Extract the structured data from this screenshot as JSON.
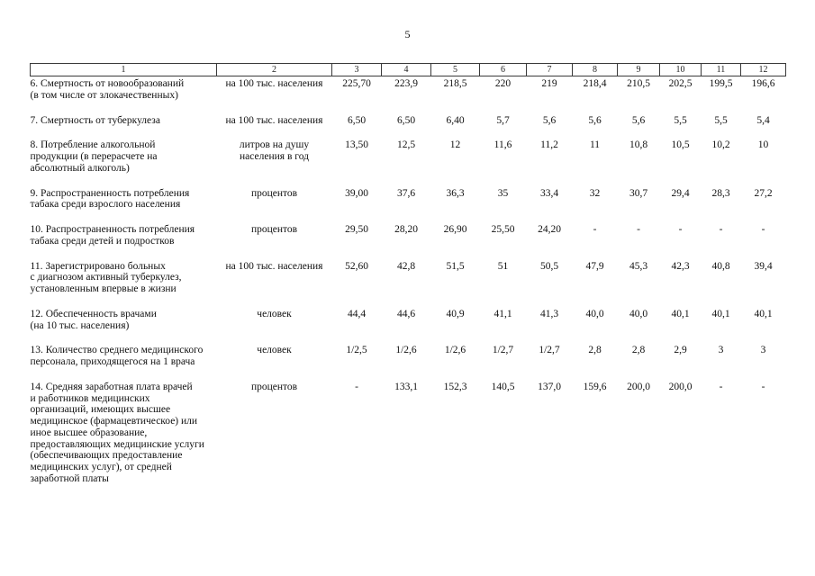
{
  "page": {
    "number": "5"
  },
  "table": {
    "header": [
      "1",
      "2",
      "3",
      "4",
      "5",
      "6",
      "7",
      "8",
      "9",
      "10",
      "11",
      "12"
    ],
    "rows": [
      {
        "label": "6. Смертность от новообразований\n(в том числе от злокачественных)",
        "unit": "на 100 тыс. населения",
        "values": [
          "225,70",
          "223,9",
          "218,5",
          "220",
          "219",
          "218,4",
          "210,5",
          "202,5",
          "199,5",
          "196,6"
        ]
      },
      {
        "label": "7. Смертность от туберкулеза",
        "unit": "на 100 тыс. населения",
        "values": [
          "6,50",
          "6,50",
          "6,40",
          "5,7",
          "5,6",
          "5,6",
          "5,6",
          "5,5",
          "5,5",
          "5,4"
        ]
      },
      {
        "label": "8. Потребление алкогольной\nпродукции (в перерасчете на\nабсолютный алкоголь)",
        "unit": "литров на душу\nнаселения в год",
        "values": [
          "13,50",
          "12,5",
          "12",
          "11,6",
          "11,2",
          "11",
          "10,8",
          "10,5",
          "10,2",
          "10"
        ]
      },
      {
        "label": "9. Распространенность потребления\nтабака среди взрослого населения",
        "unit": "процентов",
        "values": [
          "39,00",
          "37,6",
          "36,3",
          "35",
          "33,4",
          "32",
          "30,7",
          "29,4",
          "28,3",
          "27,2"
        ]
      },
      {
        "label": "10. Распространенность потребления\nтабака среди детей и подростков",
        "unit": "процентов",
        "values": [
          "29,50",
          "28,20",
          "26,90",
          "25,50",
          "24,20",
          "-",
          "-",
          "-",
          "-",
          "-"
        ]
      },
      {
        "label": "11. Зарегистрировано больных\nс диагнозом активный туберкулез,\nустановленным впервые в жизни",
        "unit": "на 100 тыс. населения",
        "values": [
          "52,60",
          "42,8",
          "51,5",
          "51",
          "50,5",
          "47,9",
          "45,3",
          "42,3",
          "40,8",
          "39,4"
        ]
      },
      {
        "label": "12. Обеспеченность врачами\n(на 10 тыс. населения)",
        "unit": "человек",
        "values": [
          "44,4",
          "44,6",
          "40,9",
          "41,1",
          "41,3",
          "40,0",
          "40,0",
          "40,1",
          "40,1",
          "40,1"
        ]
      },
      {
        "label": "13. Количество среднего медицинского\nперсонала, приходящегося на 1 врача",
        "unit": "человек",
        "values": [
          "1/2,5",
          "1/2,6",
          "1/2,6",
          "1/2,7",
          "1/2,7",
          "2,8",
          "2,8",
          "2,9",
          "3",
          "3"
        ]
      },
      {
        "label": "14. Средняя заработная плата врачей\nи работников медицинских\nорганизаций, имеющих высшее\nмедицинское (фармацевтическое) или\nиное высшее образование,\nпредоставляющих медицинские услуги\n(обеспечивающих предоставление\nмедицинских услуг), от средней\nзаработной платы",
        "unit": "процентов",
        "values": [
          "-",
          "133,1",
          "152,3",
          "140,5",
          "137,0",
          "159,6",
          "200,0",
          "200,0",
          "-",
          "-"
        ]
      }
    ]
  }
}
